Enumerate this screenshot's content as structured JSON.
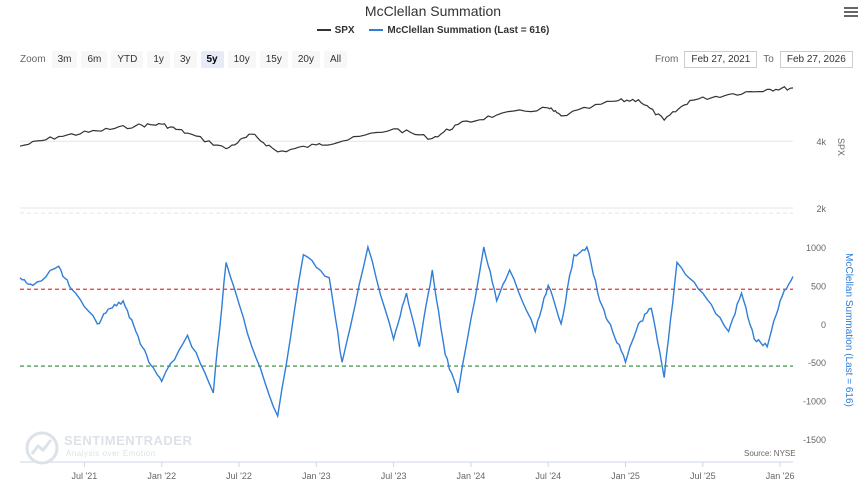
{
  "chart_title": "McClellan Summation",
  "legend": [
    {
      "name": "SPX",
      "color": "#333333"
    },
    {
      "name": "McClellan Summation (Last = 616)",
      "color": "#2f7ed8"
    }
  ],
  "zoom": {
    "label": "Zoom",
    "buttons": [
      "3m",
      "6m",
      "YTD",
      "1y",
      "3y",
      "5y",
      "10y",
      "15y",
      "20y",
      "All"
    ],
    "active": "5y"
  },
  "range": {
    "from_label": "From",
    "from_value": "Feb 27, 2021",
    "to_label": "To",
    "to_value": "Feb 27, 2026"
  },
  "watermark": {
    "line1": "SENTIMENTRADER",
    "line2": "Analysis over Emotion"
  },
  "source": "Source: NYSE",
  "chart_data": {
    "type": "line",
    "x_labels": [
      "Jul '21",
      "Jan '22",
      "Jul '22",
      "Jan '23",
      "Jul '23",
      "Jan '24",
      "Jul '24",
      "Jan '25",
      "Jul '25",
      "Jan '26"
    ],
    "panels": [
      {
        "series": "SPX",
        "ylabel": "SPX",
        "scale": "log",
        "ticks": [
          "4k",
          "2k"
        ],
        "tick_values": [
          4000,
          2000
        ],
        "color": "#333333",
        "x": [
          "2021-02",
          "2021-05",
          "2021-08",
          "2021-11",
          "2022-01",
          "2022-03",
          "2022-06",
          "2022-08",
          "2022-10",
          "2023-01",
          "2023-03",
          "2023-07",
          "2023-10",
          "2023-12",
          "2024-03",
          "2024-07",
          "2024-08",
          "2024-12",
          "2025-02",
          "2025-04",
          "2025-06",
          "2025-09",
          "2025-12",
          "2026-02"
        ],
        "values": [
          3800,
          4200,
          4450,
          4700,
          4770,
          4350,
          3700,
          4300,
          3580,
          3850,
          4000,
          4550,
          4120,
          4760,
          5250,
          5650,
          5200,
          6050,
          6150,
          4980,
          6100,
          6500,
          6850,
          6950
        ]
      },
      {
        "series": "McClellan Summation (Last = 616)",
        "ylabel": "McClellan Summation (Last = 616)",
        "ylim": [
          -1500,
          1000
        ],
        "ticks": [
          1000,
          500,
          0,
          -500,
          -1000,
          -1500
        ],
        "color": "#2f7ed8",
        "ref_lines": [
          {
            "value": 450,
            "color": "#e83a3a"
          },
          {
            "value": -550,
            "color": "#2e8b2e"
          }
        ],
        "x": [
          "2021-02",
          "2021-03",
          "2021-05",
          "2021-06",
          "2021-08",
          "2021-09",
          "2021-10",
          "2021-11",
          "2021-12",
          "2022-01",
          "2022-03",
          "2022-05",
          "2022-06",
          "2022-08",
          "2022-10",
          "2022-12",
          "2023-02",
          "2023-03",
          "2023-05",
          "2023-07",
          "2023-08",
          "2023-09",
          "2023-10",
          "2023-11",
          "2023-12",
          "2024-02",
          "2024-03",
          "2024-04",
          "2024-06",
          "2024-07",
          "2024-08",
          "2024-09",
          "2024-10",
          "2024-11",
          "2024-12",
          "2025-01",
          "2025-02",
          "2025-03",
          "2025-04",
          "2025-05",
          "2025-07",
          "2025-09",
          "2025-10",
          "2025-11",
          "2025-12",
          "2026-01",
          "2026-02"
        ],
        "values": [
          600,
          500,
          750,
          450,
          0,
          200,
          300,
          -100,
          -500,
          -750,
          -150,
          -900,
          800,
          -300,
          -1200,
          900,
          600,
          -500,
          1000,
          -200,
          400,
          -300,
          700,
          -400,
          -900,
          1000,
          300,
          700,
          -100,
          500,
          0,
          900,
          1000,
          300,
          -100,
          -500,
          0,
          200,
          -700,
          800,
          400,
          -100,
          400,
          -200,
          -300,
          300,
          616
        ]
      }
    ]
  }
}
